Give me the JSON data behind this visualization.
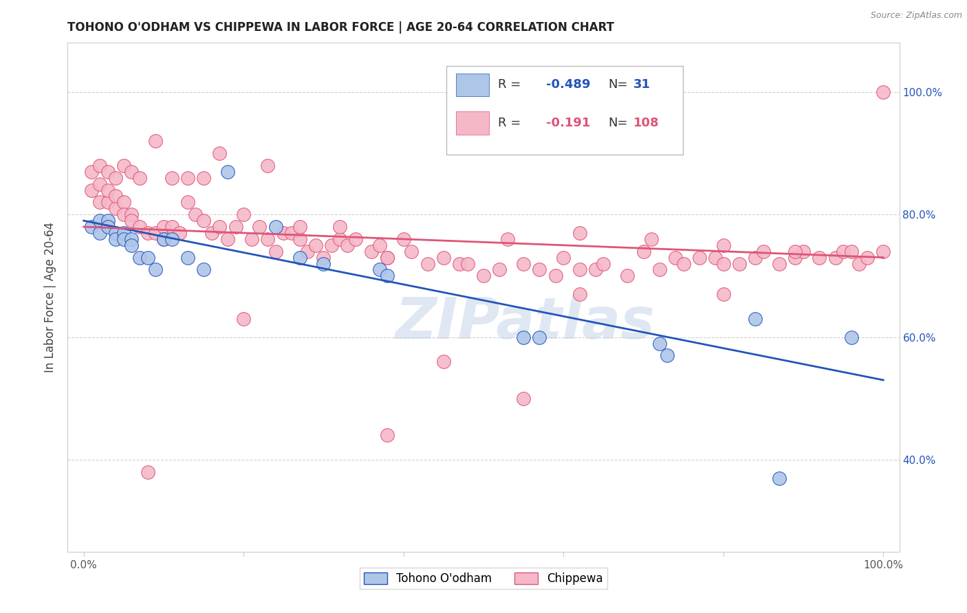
{
  "title": "TOHONO O'ODHAM VS CHIPPEWA IN LABOR FORCE | AGE 20-64 CORRELATION CHART",
  "source": "Source: ZipAtlas.com",
  "ylabel": "In Labor Force | Age 20-64",
  "xlim": [
    -0.02,
    1.02
  ],
  "ylim": [
    0.25,
    1.08
  ],
  "blue_R": -0.489,
  "blue_N": 31,
  "pink_R": -0.191,
  "pink_N": 108,
  "blue_color": "#aec6e8",
  "pink_color": "#f5b8c8",
  "blue_line_color": "#2255bb",
  "pink_line_color": "#dd5577",
  "watermark": "ZIPatlas",
  "background_color": "#ffffff",
  "grid_color": "#cccccc",
  "blue_scatter_x": [
    0.01,
    0.02,
    0.02,
    0.03,
    0.03,
    0.04,
    0.04,
    0.05,
    0.05,
    0.06,
    0.06,
    0.07,
    0.08,
    0.09,
    0.1,
    0.11,
    0.13,
    0.15,
    0.18,
    0.24,
    0.27,
    0.3,
    0.37,
    0.38,
    0.55,
    0.57,
    0.72,
    0.73,
    0.84,
    0.87,
    0.96
  ],
  "blue_scatter_y": [
    0.78,
    0.79,
    0.77,
    0.79,
    0.78,
    0.77,
    0.76,
    0.77,
    0.76,
    0.76,
    0.75,
    0.73,
    0.73,
    0.71,
    0.76,
    0.76,
    0.73,
    0.71,
    0.87,
    0.78,
    0.73,
    0.72,
    0.71,
    0.7,
    0.6,
    0.6,
    0.59,
    0.57,
    0.63,
    0.37,
    0.6
  ],
  "pink_scatter_x": [
    0.01,
    0.01,
    0.02,
    0.02,
    0.03,
    0.03,
    0.04,
    0.04,
    0.05,
    0.05,
    0.06,
    0.06,
    0.07,
    0.08,
    0.09,
    0.1,
    0.1,
    0.11,
    0.12,
    0.13,
    0.14,
    0.15,
    0.16,
    0.17,
    0.18,
    0.19,
    0.2,
    0.21,
    0.22,
    0.23,
    0.24,
    0.25,
    0.26,
    0.27,
    0.28,
    0.29,
    0.3,
    0.31,
    0.32,
    0.33,
    0.34,
    0.36,
    0.37,
    0.38,
    0.4,
    0.41,
    0.43,
    0.45,
    0.47,
    0.48,
    0.5,
    0.52,
    0.55,
    0.57,
    0.59,
    0.6,
    0.62,
    0.64,
    0.65,
    0.68,
    0.7,
    0.72,
    0.74,
    0.75,
    0.77,
    0.79,
    0.8,
    0.82,
    0.84,
    0.85,
    0.87,
    0.89,
    0.9,
    0.92,
    0.94,
    0.95,
    0.97,
    0.98,
    1.0,
    1.0,
    0.02,
    0.03,
    0.04,
    0.05,
    0.06,
    0.07,
    0.08,
    0.09,
    0.11,
    0.13,
    0.15,
    0.17,
    0.2,
    0.23,
    0.27,
    0.32,
    0.38,
    0.45,
    0.53,
    0.62,
    0.71,
    0.8,
    0.89,
    0.96,
    0.38,
    0.55,
    0.62,
    0.8
  ],
  "pink_scatter_y": [
    0.84,
    0.87,
    0.82,
    0.85,
    0.82,
    0.84,
    0.81,
    0.83,
    0.82,
    0.8,
    0.8,
    0.79,
    0.78,
    0.77,
    0.77,
    0.78,
    0.76,
    0.78,
    0.77,
    0.82,
    0.8,
    0.79,
    0.77,
    0.78,
    0.76,
    0.78,
    0.8,
    0.76,
    0.78,
    0.76,
    0.74,
    0.77,
    0.77,
    0.76,
    0.74,
    0.75,
    0.73,
    0.75,
    0.76,
    0.75,
    0.76,
    0.74,
    0.75,
    0.73,
    0.76,
    0.74,
    0.72,
    0.73,
    0.72,
    0.72,
    0.7,
    0.71,
    0.72,
    0.71,
    0.7,
    0.73,
    0.71,
    0.71,
    0.72,
    0.7,
    0.74,
    0.71,
    0.73,
    0.72,
    0.73,
    0.73,
    0.72,
    0.72,
    0.73,
    0.74,
    0.72,
    0.73,
    0.74,
    0.73,
    0.73,
    0.74,
    0.72,
    0.73,
    0.74,
    1.0,
    0.88,
    0.87,
    0.86,
    0.88,
    0.87,
    0.86,
    0.38,
    0.92,
    0.86,
    0.86,
    0.86,
    0.9,
    0.63,
    0.88,
    0.78,
    0.78,
    0.73,
    0.56,
    0.76,
    0.77,
    0.76,
    0.75,
    0.74,
    0.74,
    0.44,
    0.5,
    0.67,
    0.67
  ]
}
